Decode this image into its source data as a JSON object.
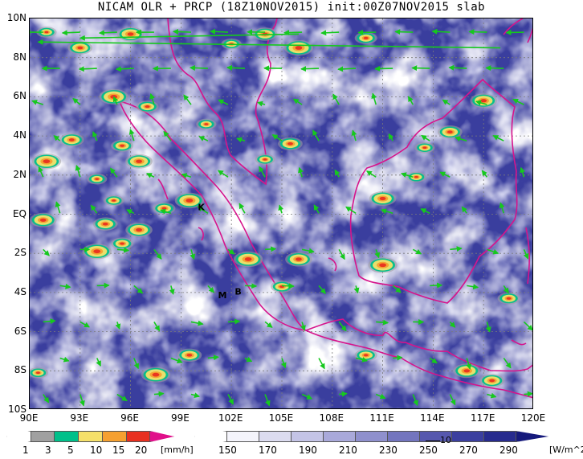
{
  "title": "NICAM OLR + PRCP (18Z10NOV2015) init:00Z07NOV2015 slab",
  "map": {
    "lat_labels": [
      "10N",
      "8N",
      "6N",
      "4N",
      "2N",
      "EQ",
      "2S",
      "4S",
      "6S",
      "8S",
      "10S"
    ],
    "lon_labels": [
      "90E",
      "93E",
      "96E",
      "99E",
      "102E",
      "105E",
      "108E",
      "111E",
      "114E",
      "117E",
      "120E"
    ],
    "extent": {
      "lon_min": 90,
      "lon_max": 120,
      "lat_min": -10,
      "lat_max": 10
    },
    "place_labels": [
      "K",
      "M",
      "B"
    ],
    "vector_ref_label": "10"
  },
  "precip_legend": {
    "labels": [
      "1",
      "3",
      "5",
      "10",
      "15",
      "20"
    ],
    "unit": "[mm/h]",
    "colors": [
      "#a0a0a0",
      "#00c08a",
      "#f5e06a",
      "#f5a030",
      "#e83020",
      "#e0108a"
    ]
  },
  "olr_legend": {
    "labels": [
      "150",
      "170",
      "190",
      "210",
      "230",
      "250",
      "270",
      "290"
    ],
    "unit": "[W/m^2]",
    "colors": [
      "#f4f4fb",
      "#dcdcf0",
      "#c4c4e6",
      "#a9a9da",
      "#8f90cd",
      "#7375be",
      "#5658ae",
      "#3b3f9f",
      "#272b8e",
      "#161a7c"
    ]
  }
}
